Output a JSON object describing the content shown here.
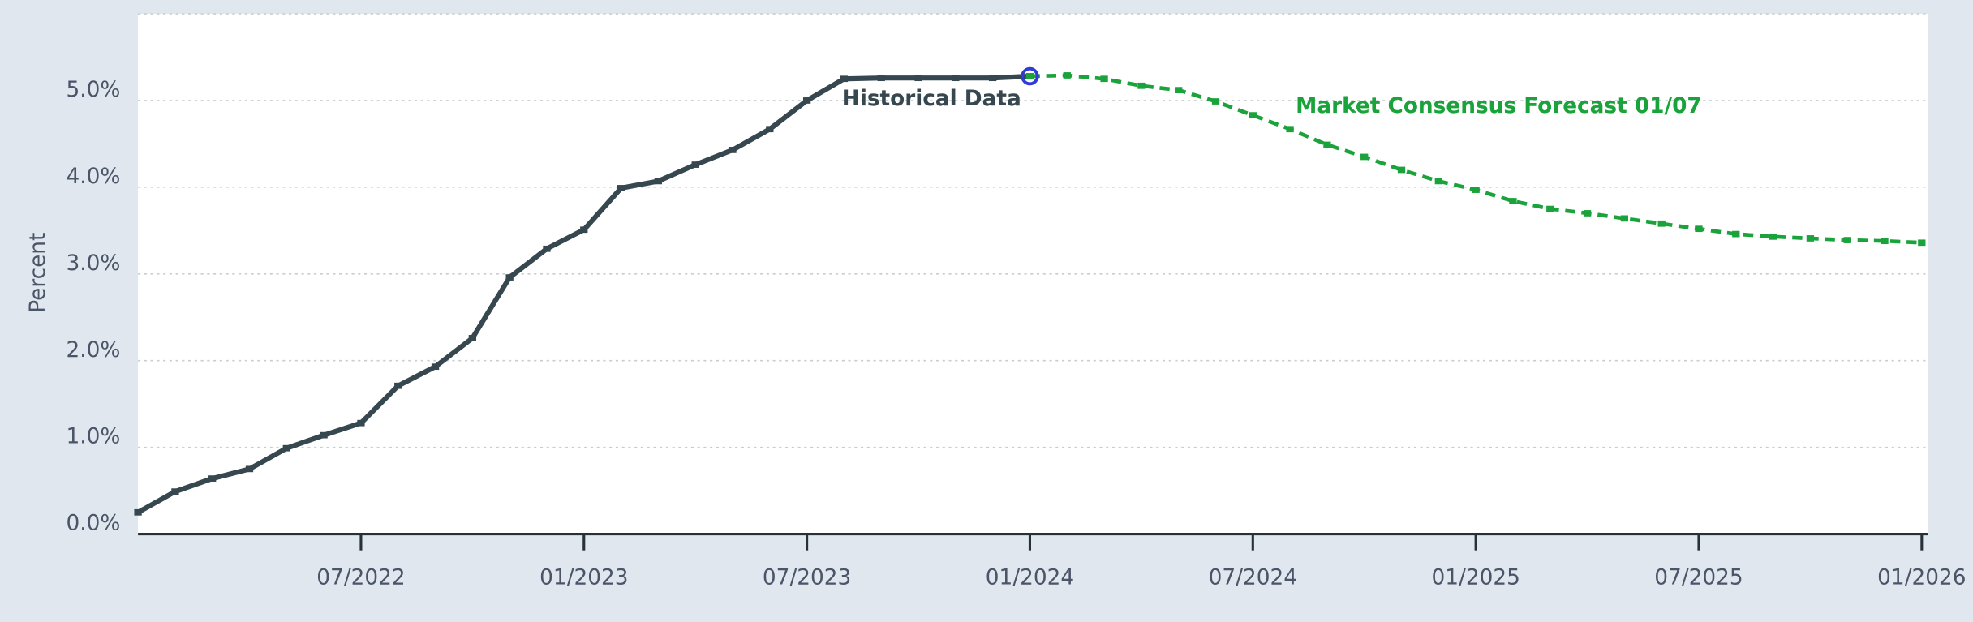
{
  "chart_data": {
    "type": "line",
    "y_label": "Percent",
    "x": [
      "01/2022",
      "02/2022",
      "03/2022",
      "04/2022",
      "05/2022",
      "06/2022",
      "07/2022",
      "08/2022",
      "09/2022",
      "10/2022",
      "11/2022",
      "12/2022",
      "01/2023",
      "02/2023",
      "03/2023",
      "04/2023",
      "05/2023",
      "06/2023",
      "07/2023",
      "08/2023",
      "09/2023",
      "10/2023",
      "11/2023",
      "12/2023",
      "01/2024",
      "02/2024",
      "03/2024",
      "04/2024",
      "05/2024",
      "06/2024",
      "07/2024",
      "08/2024",
      "09/2024",
      "10/2024",
      "11/2024",
      "12/2024",
      "01/2025",
      "02/2025",
      "03/2025",
      "04/2025",
      "05/2025",
      "06/2025",
      "07/2025",
      "08/2025",
      "09/2025",
      "10/2025",
      "11/2025",
      "12/2025",
      "01/2026"
    ],
    "series": [
      {
        "name": "Historical Data",
        "color": "#37474f",
        "dashed": false,
        "values": [
          0.25,
          0.49,
          0.64,
          0.75,
          0.99,
          1.14,
          1.28,
          1.71,
          1.93,
          2.26,
          2.96,
          3.29,
          3.51,
          3.99,
          4.07,
          4.26,
          4.43,
          4.67,
          5.0,
          5.25,
          5.26,
          5.26,
          5.26,
          5.26,
          5.28,
          null,
          null,
          null,
          null,
          null,
          null,
          null,
          null,
          null,
          null,
          null,
          null,
          null,
          null,
          null,
          null,
          null,
          null,
          null,
          null,
          null,
          null,
          null,
          null
        ]
      },
      {
        "name": "Market Consensus Forecast 01/07",
        "color": "#1aa33a",
        "dashed": true,
        "values": [
          null,
          null,
          null,
          null,
          null,
          null,
          null,
          null,
          null,
          null,
          null,
          null,
          null,
          null,
          null,
          null,
          null,
          null,
          null,
          null,
          null,
          null,
          null,
          null,
          5.28,
          5.29,
          5.25,
          5.17,
          5.12,
          4.99,
          4.83,
          4.67,
          4.49,
          4.35,
          4.2,
          4.07,
          3.97,
          3.84,
          3.75,
          3.7,
          3.64,
          3.58,
          3.52,
          3.46,
          3.43,
          3.41,
          3.39,
          3.38,
          3.36
        ]
      }
    ],
    "xticks": [
      "07/2022",
      "01/2023",
      "07/2023",
      "01/2024",
      "07/2024",
      "01/2025",
      "07/2025",
      "01/2026"
    ],
    "ylim": [
      0,
      6
    ],
    "yticks": [
      {
        "value": 0,
        "label": "0.0%"
      },
      {
        "value": 1,
        "label": "1.0%"
      },
      {
        "value": 2,
        "label": "2.0%"
      },
      {
        "value": 3,
        "label": "3.0%"
      },
      {
        "value": 4,
        "label": "4.0%"
      },
      {
        "value": 5,
        "label": "5.0%"
      }
    ],
    "grid": true
  }
}
